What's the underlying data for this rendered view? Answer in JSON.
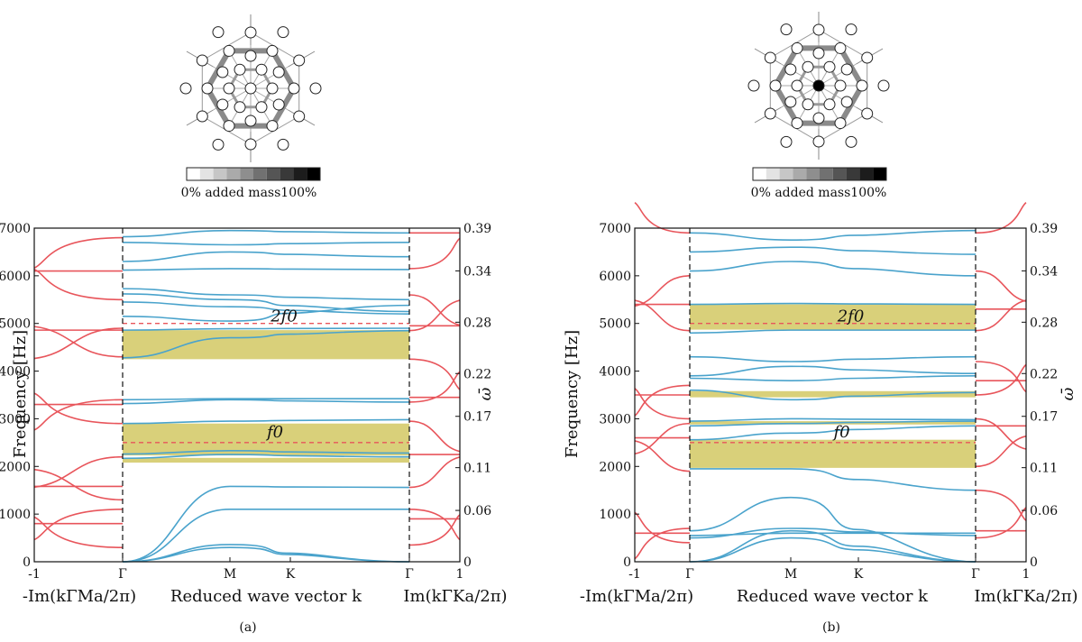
{
  "colors": {
    "bulk": "#4aa3cc",
    "evanescent": "#e8555b",
    "gap": "#d9d07a",
    "dashed": "#e8555b",
    "frame": "#111111"
  },
  "chart_data": [
    {
      "type": "line",
      "panel": "a",
      "caption": "(a)",
      "ylabel": "Frequency [Hz]",
      "ylabel_right": "ω̄",
      "xlabel_center": "Reduced wave vector k",
      "xlabel_left": "-Im(kΓMa/2π)",
      "xlabel_right": "Im(kΓKa/2π)",
      "ylim": [
        0,
        7000
      ],
      "yticks": [
        "0",
        "1000",
        "2000",
        "3000",
        "4000",
        "5000",
        "6000",
        "7000"
      ],
      "right_ticks": [
        {
          "label": "0",
          "freq": 0
        },
        {
          "label": "0.06",
          "freq": 1077
        },
        {
          "label": "0.11",
          "freq": 1974
        },
        {
          "label": "0.17",
          "freq": 3051
        },
        {
          "label": "0.22",
          "freq": 3949
        },
        {
          "label": "0.28",
          "freq": 5026
        },
        {
          "label": "0.34",
          "freq": 6103
        },
        {
          "label": "0.39",
          "freq": 7000
        }
      ],
      "xticks_left": [
        "-1",
        "Γ"
      ],
      "xticks_center": [
        "M",
        "K"
      ],
      "xticks_right": [
        "Γ",
        "1"
      ],
      "colorbar_label": "0% added mass100%",
      "reference_lines": [
        {
          "label": "f0",
          "freq": 2500
        },
        {
          "label": "2f0",
          "freq": 5000
        }
      ],
      "band_gaps": [
        [
          2080,
          2180
        ],
        [
          2230,
          2900
        ],
        [
          4250,
          4860
        ]
      ],
      "bulk_bands": [
        [
          0,
          360,
          0
        ],
        [
          0,
          300,
          0
        ],
        [
          0,
          1100,
          1100
        ],
        [
          0,
          1580,
          1560
        ],
        [
          2170,
          2250,
          2200
        ],
        [
          2260,
          2330,
          2280
        ],
        [
          2900,
          2950,
          2980
        ],
        [
          3320,
          3400,
          3350
        ],
        [
          3400,
          3420,
          3420
        ],
        [
          4280,
          4700,
          4850
        ],
        [
          4860,
          4890,
          4900
        ],
        [
          5150,
          5050,
          5380
        ],
        [
          5450,
          5350,
          5200
        ],
        [
          5620,
          5500,
          5250
        ],
        [
          5730,
          5600,
          5500
        ],
        [
          6120,
          6150,
          6130
        ],
        [
          6300,
          6500,
          6400
        ],
        [
          6700,
          6650,
          6700
        ],
        [
          6820,
          6950,
          6900
        ]
      ],
      "evanescent_left": [
        300,
        800,
        1100,
        1300,
        1580,
        2200,
        2900,
        3300,
        3400,
        4300,
        4860,
        4900,
        5500,
        6100,
        6800
      ],
      "evanescent_right": [
        350,
        900,
        1100,
        1560,
        2250,
        2950,
        3350,
        3450,
        4250,
        4850,
        4950,
        5600,
        6150,
        6900
      ]
    },
    {
      "type": "line",
      "panel": "b",
      "caption": "(b)",
      "ylabel": "Frequency [Hz]",
      "ylabel_right": "ω̄",
      "xlabel_center": "Reduced wave vector k",
      "xlabel_left": "-Im(kΓMa/2π)",
      "xlabel_right": "Im(kΓKa/2π)",
      "ylim": [
        0,
        7000
      ],
      "yticks": [
        "0",
        "1000",
        "2000",
        "3000",
        "4000",
        "5000",
        "6000",
        "7000"
      ],
      "right_ticks": [
        {
          "label": "0",
          "freq": 0
        },
        {
          "label": "0.06",
          "freq": 1077
        },
        {
          "label": "0.11",
          "freq": 1974
        },
        {
          "label": "0.17",
          "freq": 3051
        },
        {
          "label": "0.22",
          "freq": 3949
        },
        {
          "label": "0.28",
          "freq": 5026
        },
        {
          "label": "0.34",
          "freq": 6103
        },
        {
          "label": "0.39",
          "freq": 7000
        }
      ],
      "xticks_left": [
        "-1",
        "Γ"
      ],
      "xticks_center": [
        "M",
        "K"
      ],
      "xticks_right": [
        "Γ",
        "1"
      ],
      "colorbar_label": "0% added mass100%",
      "reference_lines": [
        {
          "label": "f0",
          "freq": 2500
        },
        {
          "label": "2f0",
          "freq": 5000
        }
      ],
      "band_gaps": [
        [
          1970,
          2560
        ],
        [
          2880,
          2950
        ],
        [
          3450,
          3580
        ],
        [
          4870,
          5400
        ]
      ],
      "bulk_bands": [
        [
          0,
          500,
          0
        ],
        [
          0,
          650,
          0
        ],
        [
          500,
          700,
          550
        ],
        [
          550,
          600,
          600
        ],
        [
          650,
          1350,
          0
        ],
        [
          1950,
          1950,
          1500
        ],
        [
          2560,
          2700,
          2850
        ],
        [
          2850,
          2900,
          2950
        ],
        [
          2950,
          3000,
          2980
        ],
        [
          3600,
          3400,
          3550
        ],
        [
          3850,
          3800,
          3900
        ],
        [
          3900,
          4100,
          3950
        ],
        [
          4300,
          4200,
          4300
        ],
        [
          4800,
          4860,
          4860
        ],
        [
          5400,
          5420,
          5400
        ],
        [
          6100,
          6300,
          6000
        ],
        [
          6500,
          6600,
          6450
        ],
        [
          6900,
          6750,
          6950
        ]
      ],
      "evanescent_left": [
        400,
        600,
        700,
        1900,
        2600,
        2900,
        3000,
        3500,
        3700,
        4850,
        5400,
        6000,
        6900
      ],
      "evanescent_right": [
        500,
        650,
        1500,
        2000,
        2850,
        3000,
        3500,
        3800,
        4200,
        4850,
        5300,
        6100,
        6900
      ]
    }
  ]
}
